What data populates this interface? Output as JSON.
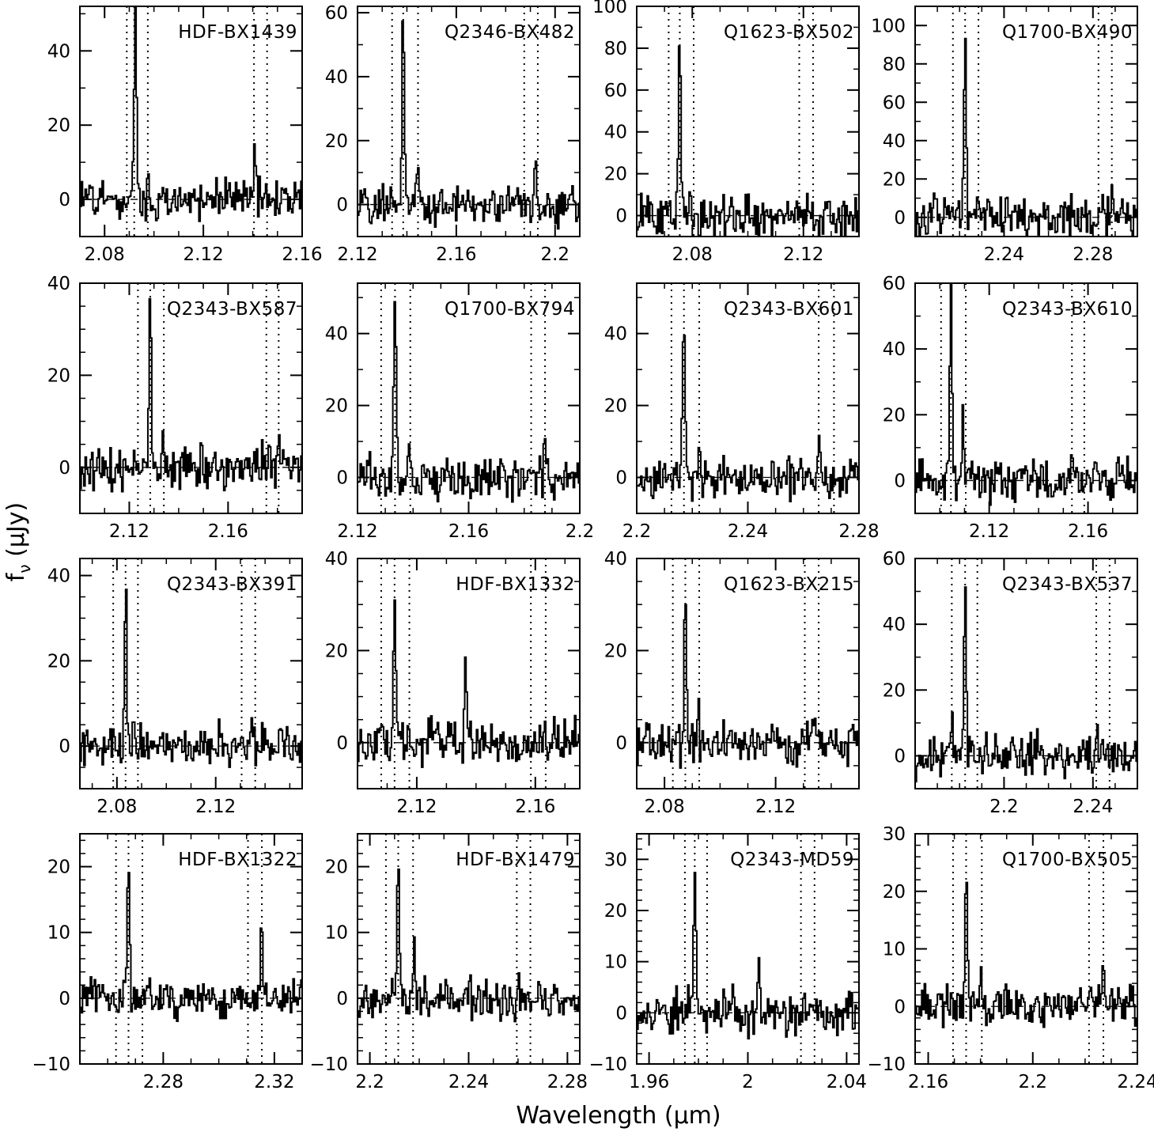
{
  "figure": {
    "xlabel": "Wavelength (μm)",
    "ylabel": "f_ν (μJy)"
  },
  "chart_data": [
    {
      "type": "line",
      "title": "HDF-BX1439",
      "xlim": [
        2.07,
        2.16
      ],
      "ylim": [
        -10,
        52
      ],
      "xticks": [
        2.08,
        2.12,
        2.16
      ],
      "yticks": [
        0,
        20,
        40
      ],
      "line_center": 2.092,
      "peaks": [
        [
          2.0925,
          50
        ],
        [
          2.0975,
          8
        ],
        [
          2.141,
          13
        ]
      ],
      "markers": [
        2.089,
        2.092,
        2.0975,
        2.1405,
        2.1458
      ]
    },
    {
      "type": "line",
      "title": "Q2346-BX482",
      "xlim": [
        2.12,
        2.21
      ],
      "ylim": [
        -10,
        62
      ],
      "xticks": [
        2.12,
        2.16,
        2.2
      ],
      "yticks": [
        0,
        20,
        40,
        60
      ],
      "line_center": 2.1385,
      "peaks": [
        [
          2.1385,
          60
        ],
        [
          2.144,
          11
        ],
        [
          2.192,
          14
        ]
      ],
      "markers": [
        2.134,
        2.1385,
        2.1445,
        2.1875,
        2.193
      ]
    },
    {
      "type": "line",
      "title": "Q1623-BX502",
      "xlim": [
        2.06,
        2.14
      ],
      "ylim": [
        -10,
        100
      ],
      "xticks": [
        2.08,
        2.12
      ],
      "yticks": [
        0,
        20,
        40,
        60,
        80,
        100
      ],
      "line_center": 2.0755,
      "peaks": [
        [
          2.0755,
          90
        ],
        [
          2.079,
          8
        ]
      ],
      "markers": [
        2.0715,
        2.0755,
        2.0805,
        2.1185,
        2.1235
      ]
    },
    {
      "type": "line",
      "title": "Q1700-BX490",
      "xlim": [
        2.2,
        2.3
      ],
      "ylim": [
        -10,
        110
      ],
      "xticks": [
        2.24,
        2.28
      ],
      "yticks": [
        0,
        20,
        40,
        60,
        80,
        100
      ],
      "line_center": 2.2225,
      "peaks": [
        [
          2.2225,
          100
        ],
        [
          2.2285,
          12
        ],
        [
          2.2885,
          20
        ]
      ],
      "markers": [
        2.217,
        2.2225,
        2.2285,
        2.2825,
        2.2885
      ]
    },
    {
      "type": "line",
      "title": "Q2343-BX587",
      "xlim": [
        2.1,
        2.19
      ],
      "ylim": [
        -10,
        40
      ],
      "xticks": [
        2.12,
        2.16
      ],
      "yticks": [
        0,
        20,
        40
      ],
      "line_center": 2.1285,
      "peaks": [
        [
          2.1285,
          35
        ],
        [
          2.1335,
          10
        ],
        [
          2.1805,
          8
        ]
      ],
      "markers": [
        2.1235,
        2.1285,
        2.134,
        2.1755,
        2.1805
      ]
    },
    {
      "type": "line",
      "title": "Q1700-BX794",
      "xlim": [
        2.12,
        2.2
      ],
      "ylim": [
        -10,
        54
      ],
      "xticks": [
        2.12,
        2.16,
        2.2
      ],
      "yticks": [
        0,
        20,
        40
      ],
      "line_center": 2.1335,
      "peaks": [
        [
          2.1335,
          51
        ],
        [
          2.1385,
          9
        ],
        [
          2.1875,
          12
        ]
      ],
      "markers": [
        2.1285,
        2.1335,
        2.139,
        2.1825,
        2.1875
      ]
    },
    {
      "type": "line",
      "title": "Q2343-BX601",
      "xlim": [
        2.2,
        2.28
      ],
      "ylim": [
        -10,
        54
      ],
      "xticks": [
        2.2,
        2.24,
        2.28
      ],
      "yticks": [
        0,
        20,
        40
      ],
      "line_center": 2.217,
      "peaks": [
        [
          2.217,
          48
        ],
        [
          2.2225,
          11
        ],
        [
          2.2655,
          8
        ]
      ],
      "markers": [
        2.2125,
        2.217,
        2.2225,
        2.2655,
        2.271
      ]
    },
    {
      "type": "line",
      "title": "Q2343-BX610",
      "xlim": [
        2.09,
        2.18
      ],
      "ylim": [
        -10,
        60
      ],
      "xticks": [
        2.12,
        2.16
      ],
      "yticks": [
        0,
        20,
        40,
        60
      ],
      "line_center": 2.1045,
      "peaks": [
        [
          2.1045,
          55
        ],
        [
          2.1095,
          20
        ],
        [
          2.1535,
          12
        ]
      ],
      "markers": [
        2.1005,
        2.1045,
        2.1105,
        2.1535,
        2.1585
      ]
    },
    {
      "type": "line",
      "title": "Q2343-BX391",
      "xlim": [
        2.065,
        2.155
      ],
      "ylim": [
        -10,
        44
      ],
      "xticks": [
        2.08,
        2.12
      ],
      "yticks": [
        0,
        20,
        40
      ],
      "line_center": 2.0835,
      "peaks": [
        [
          2.0835,
          38
        ],
        [
          2.135,
          6
        ]
      ],
      "markers": [
        2.0785,
        2.0835,
        2.0885,
        2.1305,
        2.136
      ]
    },
    {
      "type": "line",
      "title": "HDF-BX1332",
      "xlim": [
        2.1,
        2.175
      ],
      "ylim": [
        -10,
        40
      ],
      "xticks": [
        2.12,
        2.16
      ],
      "yticks": [
        0,
        20,
        40
      ],
      "line_center": 2.1125,
      "peaks": [
        [
          2.1125,
          34
        ],
        [
          2.1365,
          17
        ],
        [
          2.163,
          6
        ]
      ],
      "markers": [
        2.108,
        2.1125,
        2.1175,
        2.1585,
        2.1635
      ]
    },
    {
      "type": "line",
      "title": "Q1623-BX215",
      "xlim": [
        2.07,
        2.15
      ],
      "ylim": [
        -10,
        40
      ],
      "xticks": [
        2.08,
        2.12
      ],
      "yticks": [
        0,
        20,
        40
      ],
      "line_center": 2.0875,
      "peaks": [
        [
          2.0875,
          33
        ],
        [
          2.092,
          6
        ]
      ],
      "markers": [
        2.083,
        2.0875,
        2.0925,
        2.1305,
        2.1355
      ]
    },
    {
      "type": "line",
      "title": "Q2343-BX537",
      "xlim": [
        2.16,
        2.26
      ],
      "ylim": [
        -10,
        60
      ],
      "xticks": [
        2.2,
        2.24
      ],
      "yticks": [
        0,
        20,
        40,
        60
      ],
      "line_center": 2.1825,
      "peaks": [
        [
          2.1825,
          52
        ],
        [
          2.1765,
          10
        ],
        [
          2.242,
          8
        ]
      ],
      "markers": [
        2.1765,
        2.1825,
        2.188,
        2.2415,
        2.2475
      ]
    },
    {
      "type": "line",
      "title": "HDF-BX1322",
      "xlim": [
        2.25,
        2.33
      ],
      "ylim": [
        -10,
        25
      ],
      "xticks": [
        2.28,
        2.32
      ],
      "yticks": [
        -10,
        0,
        10,
        20
      ],
      "line_center": 2.2675,
      "peaks": [
        [
          2.2675,
          20
        ],
        [
          2.3155,
          11
        ]
      ],
      "markers": [
        2.263,
        2.2675,
        2.2725,
        2.3105,
        2.3155
      ]
    },
    {
      "type": "line",
      "title": "HDF-BX1479",
      "xlim": [
        2.195,
        2.285
      ],
      "ylim": [
        -10,
        25
      ],
      "xticks": [
        2.2,
        2.24,
        2.28
      ],
      "yticks": [
        -10,
        0,
        10,
        20
      ],
      "line_center": 2.2115,
      "peaks": [
        [
          2.2115,
          21
        ],
        [
          2.218,
          9
        ]
      ],
      "markers": [
        2.2065,
        2.2115,
        2.2175,
        2.2595,
        2.265
      ]
    },
    {
      "type": "line",
      "title": "Q2343-MD59",
      "xlim": [
        1.955,
        2.045
      ],
      "ylim": [
        -10,
        35
      ],
      "xticks": [
        1.96,
        2,
        2.04
      ],
      "yticks": [
        -10,
        0,
        10,
        20,
        30
      ],
      "line_center": 1.9785,
      "peaks": [
        [
          1.9785,
          29
        ],
        [
          2.0045,
          13
        ],
        [
          2.0225,
          6
        ]
      ],
      "markers": [
        1.9745,
        1.9785,
        1.9835,
        2.0215,
        2.027
      ]
    },
    {
      "type": "line",
      "title": "Q1700-BX505",
      "xlim": [
        2.155,
        2.24
      ],
      "ylim": [
        -10,
        30
      ],
      "xticks": [
        2.16,
        2.2,
        2.24
      ],
      "yticks": [
        -10,
        0,
        10,
        20,
        30
      ],
      "line_center": 2.1745,
      "peaks": [
        [
          2.1745,
          23
        ],
        [
          2.18,
          6
        ],
        [
          2.227,
          8
        ]
      ],
      "markers": [
        2.1695,
        2.1745,
        2.1805,
        2.2215,
        2.227
      ]
    }
  ]
}
